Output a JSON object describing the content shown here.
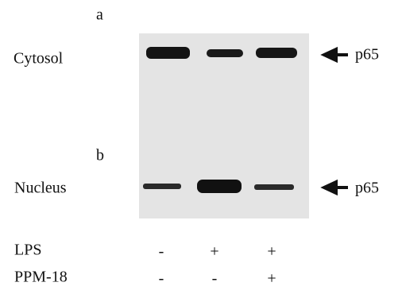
{
  "panels": [
    {
      "label": "a",
      "fraction": "Cytosol",
      "marker": "p65"
    },
    {
      "label": "b",
      "fraction": "Nucleus",
      "marker": "p65"
    }
  ],
  "treatments": [
    {
      "name": "LPS",
      "lanes": [
        "-",
        "+",
        "+"
      ]
    },
    {
      "name": "PPM-18",
      "lanes": [
        "-",
        "-",
        "+"
      ]
    }
  ]
}
